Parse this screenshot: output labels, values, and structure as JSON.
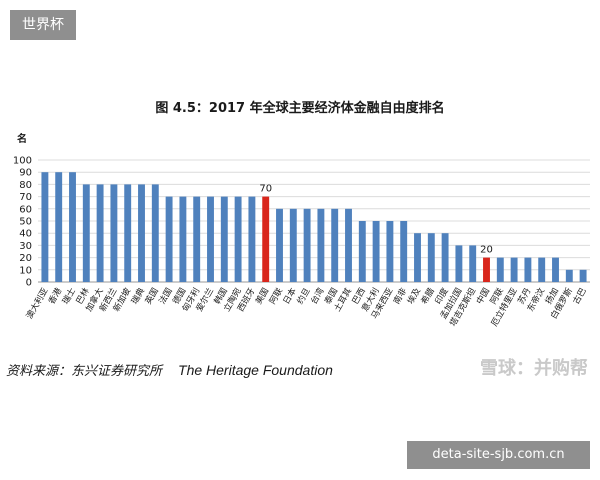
{
  "top_tag": "世界杯",
  "bottom_tag": "deta-site-sjb.com.cn",
  "source_cn": "资料来源：东兴证券研究所",
  "source_en": "The Heritage Foundation",
  "watermark": "雪球：并购帮",
  "colors": {
    "bar": "#4f81bd",
    "highlight": "#d9261c",
    "grid": "#dcdcdc"
  },
  "chart_data": {
    "type": "bar",
    "title": "图 4.5：2017 年全球主要经济体金融自由度排名",
    "ylabel": "名",
    "ylim": [
      0,
      100
    ],
    "yticks": [
      0,
      10,
      20,
      30,
      40,
      50,
      60,
      70,
      80,
      90,
      100
    ],
    "grid": true,
    "categories": [
      "澳大利亚",
      "香港",
      "瑞士",
      "巴林",
      "加拿大",
      "新西兰",
      "新加坡",
      "瑞典",
      "英国",
      "法国",
      "德国",
      "匈牙利",
      "爱尔兰",
      "韩国",
      "立陶宛",
      "西班牙",
      "美国",
      "阿联",
      "日本",
      "约旦",
      "台湾",
      "泰国",
      "土耳其",
      "巴西",
      "意大利",
      "马来西亚",
      "南非",
      "埃及",
      "希腊",
      "印度",
      "孟加拉国",
      "塔吉克斯坦",
      "中国",
      "阿联",
      "厄立特里亚",
      "苏丹",
      "东帝汶",
      "扬加",
      "白俄罗斯",
      "古巴"
    ],
    "values": [
      90,
      90,
      90,
      80,
      80,
      80,
      80,
      80,
      80,
      70,
      70,
      70,
      70,
      70,
      70,
      70,
      70,
      60,
      60,
      60,
      60,
      60,
      60,
      50,
      50,
      50,
      50,
      40,
      40,
      40,
      30,
      30,
      20,
      20,
      20,
      20,
      20,
      20,
      10,
      10
    ],
    "highlight": [
      "美国",
      "中国"
    ],
    "data_labels": [
      {
        "category": "美国",
        "value": "70"
      },
      {
        "category": "中国",
        "value": "20"
      }
    ]
  }
}
